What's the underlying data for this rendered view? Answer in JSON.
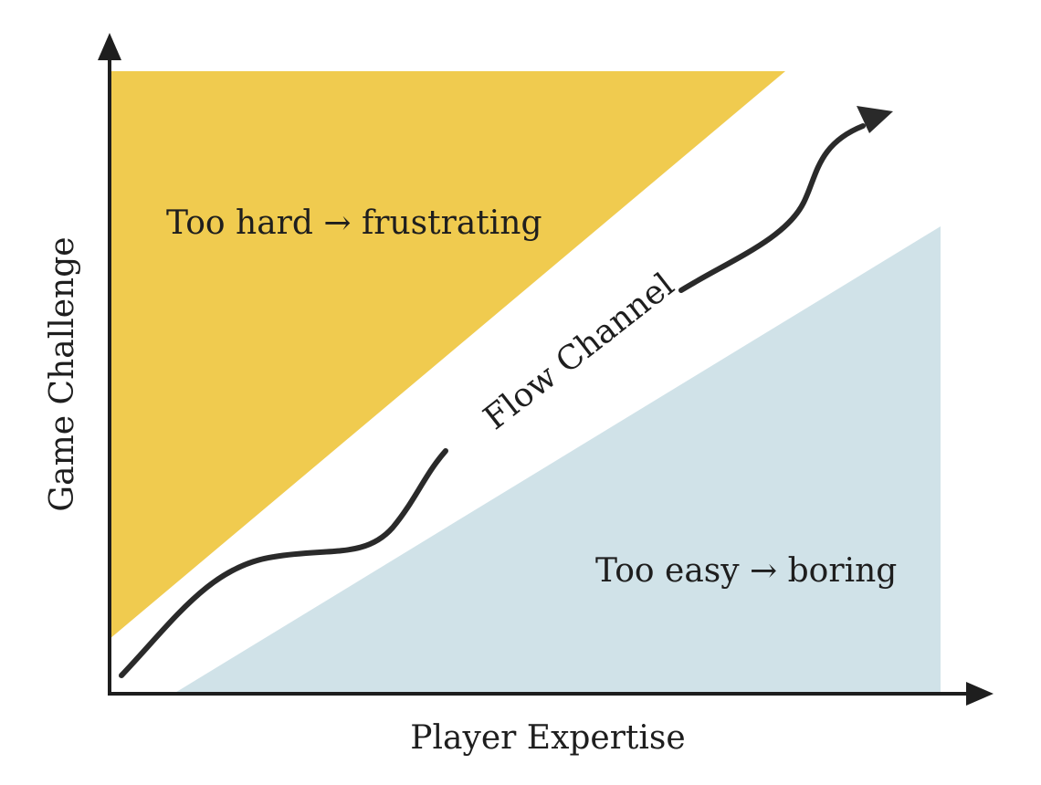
{
  "diagram": {
    "axes": {
      "x_label": "Player Expertise",
      "y_label": "Game Challenge"
    },
    "regions": {
      "too_hard": {
        "label": "Too hard → frustrating",
        "color": "#f0cb4f"
      },
      "too_easy": {
        "label": "Too easy → boring",
        "color": "#d0e2e8"
      },
      "flow_channel": {
        "label": "Flow Channel"
      }
    },
    "colors": {
      "axis": "#1e1e1e",
      "path": "#2a2a2a"
    }
  }
}
